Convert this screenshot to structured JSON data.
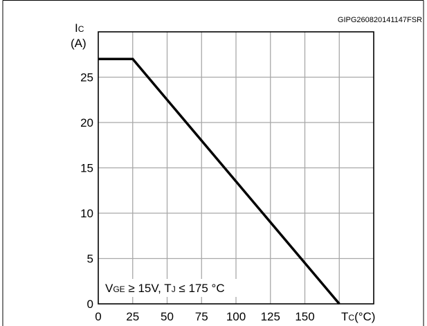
{
  "ref_code": "GIPG260820141147FSR",
  "chart_data": {
    "type": "line",
    "title": "",
    "ylabel_main": "I",
    "ylabel_sub": "C",
    "ylabel_unit": "(A)",
    "xlabel_main": "T",
    "xlabel_sub": "C",
    "xlabel_unit": "(°C)",
    "xlim": [
      0,
      200
    ],
    "ylim": [
      0,
      30
    ],
    "x_ticks": [
      0,
      25,
      50,
      75,
      100,
      125,
      150
    ],
    "y_ticks": [
      0,
      5,
      10,
      15,
      20,
      25
    ],
    "grid": true,
    "condition": {
      "v": "V",
      "v_sub": "GE",
      "v_rest": " ≥ 15V, T",
      "t_sub": "J",
      "t_rest": " ≤ 175 °C"
    },
    "series": [
      {
        "x": [
          0,
          25,
          175
        ],
        "y": [
          27,
          27,
          0
        ]
      }
    ]
  }
}
